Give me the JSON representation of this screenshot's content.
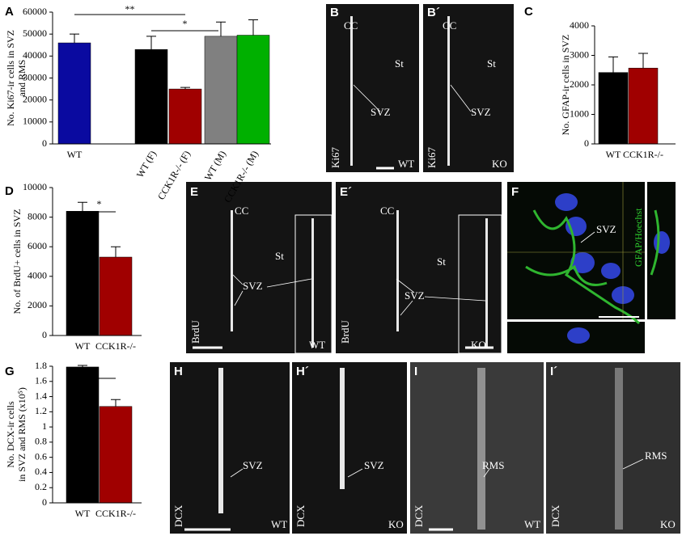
{
  "chart_data": [
    {
      "type": "bar",
      "panel": "A",
      "ylabel": [
        "No. Ki67-ir cells in SVZ",
        "and RMS"
      ],
      "categories": [
        "WT",
        "WT (F)",
        "CCK1R-/- (F)",
        "WT (M)",
        "CCK1R-/- (M)"
      ],
      "values": [
        46000,
        43000,
        25000,
        49000,
        49500
      ],
      "errors": [
        4000,
        6000,
        700,
        6500,
        7000
      ],
      "colors": [
        "#0a0aa0",
        "#000000",
        "#a00000",
        "#808080",
        "#00b000"
      ],
      "ylim": [
        0,
        60000
      ],
      "yticks": [
        0,
        10000,
        20000,
        30000,
        40000,
        50000,
        60000
      ],
      "annotations": [
        "**",
        "*"
      ]
    },
    {
      "type": "bar",
      "panel": "C",
      "ylabel": [
        "No. GFAP-ir cells in SVZ"
      ],
      "categories": [
        "WT",
        "CCK1R-/-"
      ],
      "values": [
        2420,
        2570
      ],
      "errors": [
        530,
        500
      ],
      "colors": [
        "#000000",
        "#a00000"
      ],
      "ylim": [
        0,
        4000
      ],
      "yticks": [
        0,
        1000,
        2000,
        3000,
        4000
      ],
      "annotations": []
    },
    {
      "type": "bar",
      "panel": "D",
      "ylabel": [
        "No. of BrdU+ cells in SVZ"
      ],
      "categories": [
        "WT",
        "CCK1R-/-"
      ],
      "values": [
        8400,
        5300
      ],
      "errors": [
        600,
        700
      ],
      "colors": [
        "#000000",
        "#a00000"
      ],
      "ylim": [
        0,
        10000
      ],
      "yticks": [
        0,
        2000,
        4000,
        6000,
        8000,
        10000
      ],
      "annotations": [
        "*"
      ]
    },
    {
      "type": "bar",
      "panel": "G",
      "ylabel": [
        "No. DCX-ir cells",
        "in SVZ and RMS (x10⁵)"
      ],
      "categories": [
        "WT",
        "CCK1R-/-"
      ],
      "values": [
        1.79,
        1.27
      ],
      "errors": [
        0.02,
        0.09
      ],
      "colors": [
        "#000000",
        "#a00000"
      ],
      "ylim": [
        0,
        1.8
      ],
      "yticks": [
        0,
        0.2,
        0.4,
        0.6,
        0.8,
        1,
        1.2,
        1.4,
        1.6,
        1.8
      ],
      "annotations": [
        "*"
      ]
    }
  ],
  "image_panels": [
    {
      "panel": "B",
      "texts": [
        "CC",
        "St",
        "SVZ",
        "Ki67",
        "WT"
      ]
    },
    {
      "panel": "B´",
      "texts": [
        "CC",
        "St",
        "SVZ",
        "Ki67",
        "KO"
      ]
    },
    {
      "panel": "E",
      "texts": [
        "CC",
        "St",
        "SVZ",
        "BrdU",
        "WT"
      ]
    },
    {
      "panel": "E´",
      "texts": [
        "CC",
        "St",
        "SVZ",
        "BrdU",
        "KO"
      ]
    },
    {
      "panel": "F",
      "texts": [
        "SVZ",
        "GFAP/Hoechst"
      ]
    },
    {
      "panel": "H",
      "texts": [
        "SVZ",
        "DCX",
        "WT"
      ]
    },
    {
      "panel": "H´",
      "texts": [
        "SVZ",
        "DCX",
        "KO"
      ]
    },
    {
      "panel": "I",
      "texts": [
        "RMS",
        "DCX",
        "WT"
      ]
    },
    {
      "panel": "I´",
      "texts": [
        "RMS",
        "DCX",
        "KO"
      ]
    }
  ]
}
